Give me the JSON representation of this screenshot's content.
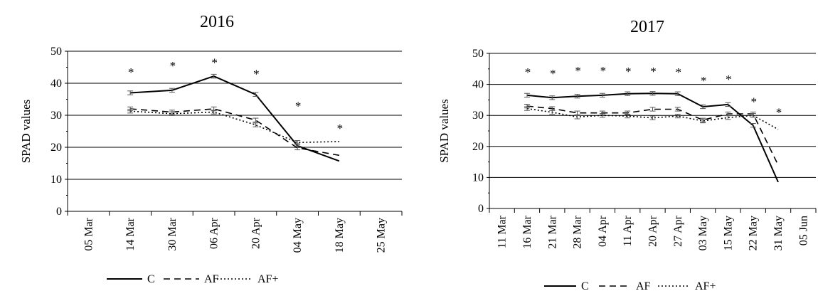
{
  "chart_data": [
    {
      "type": "line",
      "title": "2016",
      "ylabel": "SPAD values",
      "xlabel": "",
      "ylim": [
        0,
        50
      ],
      "yticks": [
        0,
        10,
        20,
        30,
        40,
        50
      ],
      "grid": "horizontal",
      "legend_position": "bottom",
      "categories": [
        "05 Mar",
        "14 Mar",
        "30 Mar",
        "06 Apr",
        "20 Apr",
        "04 May",
        "18 May",
        "25 May"
      ],
      "series": [
        {
          "name": "C",
          "line_style": "solid",
          "values": [
            null,
            37.0,
            37.8,
            42.2,
            36.5,
            20.5,
            15.7,
            null
          ]
        },
        {
          "name": "AF",
          "line_style": "dashed",
          "values": [
            null,
            32.0,
            31.0,
            32.0,
            28.5,
            19.8,
            17.5,
            null
          ]
        },
        {
          "name": "AF+",
          "line_style": "dotted",
          "values": [
            null,
            31.3,
            30.5,
            31.0,
            27.0,
            21.5,
            21.8,
            null
          ]
        }
      ],
      "error_bar_categories": [
        1,
        2,
        3,
        4,
        5
      ],
      "significance": [
        {
          "category": "14 Mar",
          "label": "*",
          "y": 44
        },
        {
          "category": "30 Mar",
          "label": "*",
          "y": 46
        },
        {
          "category": "06 Apr",
          "label": "*",
          "y": 47
        },
        {
          "category": "20 Apr",
          "label": "*",
          "y": 43.5
        },
        {
          "category": "04 May",
          "label": "*",
          "y": 33.5
        },
        {
          "category": "18 May",
          "label": "*",
          "y": 26.5
        }
      ]
    },
    {
      "type": "line",
      "title": "2017",
      "ylabel": "SPAD values",
      "xlabel": "",
      "ylim": [
        0,
        50
      ],
      "yticks": [
        0,
        10,
        20,
        30,
        40,
        50
      ],
      "grid": "horizontal",
      "legend_position": "bottom",
      "categories": [
        "11 Mar",
        "16 Mar",
        "21 Mar",
        "28 Mar",
        "04 Apr",
        "11 Apr",
        "20 Apr",
        "27 Apr",
        "03 May",
        "15 May",
        "22 May",
        "31 May",
        "05 Jun"
      ],
      "series": [
        {
          "name": "C",
          "line_style": "solid",
          "values": [
            null,
            36.5,
            35.7,
            36.2,
            36.5,
            37.0,
            37.1,
            37.0,
            32.8,
            33.5,
            26.8,
            8.5,
            null
          ]
        },
        {
          "name": "AF",
          "line_style": "dashed",
          "values": [
            null,
            33.0,
            32.2,
            30.8,
            30.8,
            30.8,
            32.0,
            32.0,
            28.5,
            30.5,
            30.5,
            14.0,
            null
          ]
        },
        {
          "name": "AF+",
          "line_style": "dotted",
          "values": [
            null,
            32.2,
            31.0,
            29.5,
            30.0,
            29.8,
            29.2,
            29.8,
            28.2,
            29.3,
            30.0,
            25.5,
            null
          ]
        }
      ],
      "error_bar_categories": [
        1,
        2,
        3,
        4,
        5,
        6,
        7,
        8,
        9,
        10
      ],
      "significance": [
        {
          "category": "16 Mar",
          "label": "*",
          "y": 44.5
        },
        {
          "category": "21 Mar",
          "label": "*",
          "y": 44.0
        },
        {
          "category": "28 Mar",
          "label": "*",
          "y": 45.0
        },
        {
          "category": "04 Apr",
          "label": "*",
          "y": 45.0
        },
        {
          "category": "11 Apr",
          "label": "*",
          "y": 44.7
        },
        {
          "category": "20 Apr",
          "label": "*",
          "y": 44.7
        },
        {
          "category": "27 Apr",
          "label": "*",
          "y": 44.5
        },
        {
          "category": "03 May",
          "label": "*",
          "y": 41.8
        },
        {
          "category": "15 May",
          "label": "*",
          "y": 42.2
        },
        {
          "category": "22 May",
          "label": "*",
          "y": 35.0
        },
        {
          "category": "31 May",
          "label": "*",
          "y": 31.5
        }
      ]
    }
  ]
}
